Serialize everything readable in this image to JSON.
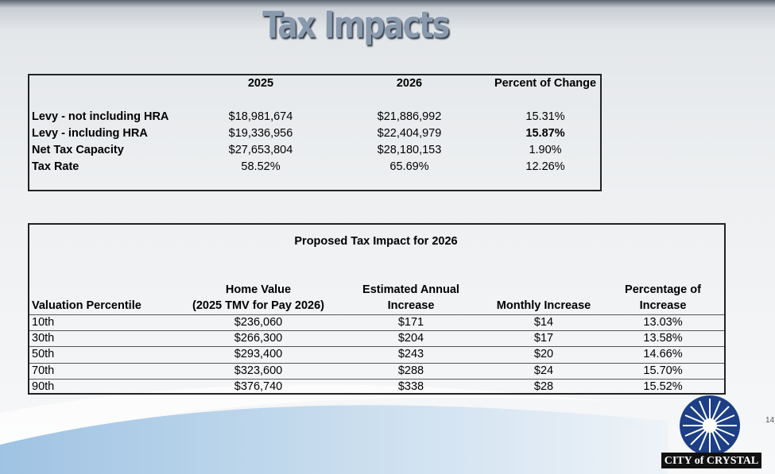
{
  "title": "Tax Impacts",
  "levy_table": {
    "headers": [
      "2025",
      "2026",
      "Percent of Change"
    ],
    "rows": [
      [
        "Levy - not including HRA",
        "$18,981,674",
        "$21,886,992",
        "15.31%"
      ],
      [
        "Levy - including HRA",
        "$19,336,956",
        "$22,404,979",
        "15.87%"
      ],
      [
        "Net Tax Capacity",
        "$27,653,804",
        "$28,180,153",
        "1.90%"
      ],
      [
        "Tax Rate",
        "58.52%",
        "65.69%",
        "12.26%"
      ]
    ]
  },
  "impact_table": {
    "title": "Proposed Tax Impact for 2026",
    "headers": [
      [
        "Valuation Percentile"
      ],
      [
        "Home Value",
        "(2025 TMV for Pay 2026)"
      ],
      [
        "Estimated Annual",
        "Increase"
      ],
      [
        "Monthly Increase"
      ],
      [
        "Percentage of",
        "Increase"
      ]
    ],
    "rows": [
      [
        "10th",
        "$236,060",
        "$171",
        "$14",
        "13.03%"
      ],
      [
        "30th",
        "$266,300",
        "$204",
        "$17",
        "13.58%"
      ],
      [
        "50th",
        "$293,400",
        "$243",
        "$20",
        "14.66%"
      ],
      [
        "70th",
        "$323,600",
        "$288",
        "$24",
        "15.70%"
      ],
      [
        "90th",
        "$376,740",
        "$338",
        "$28",
        "15.52%"
      ]
    ]
  },
  "page_number": "14",
  "logo_text": "CITY of CRYSTAL"
}
